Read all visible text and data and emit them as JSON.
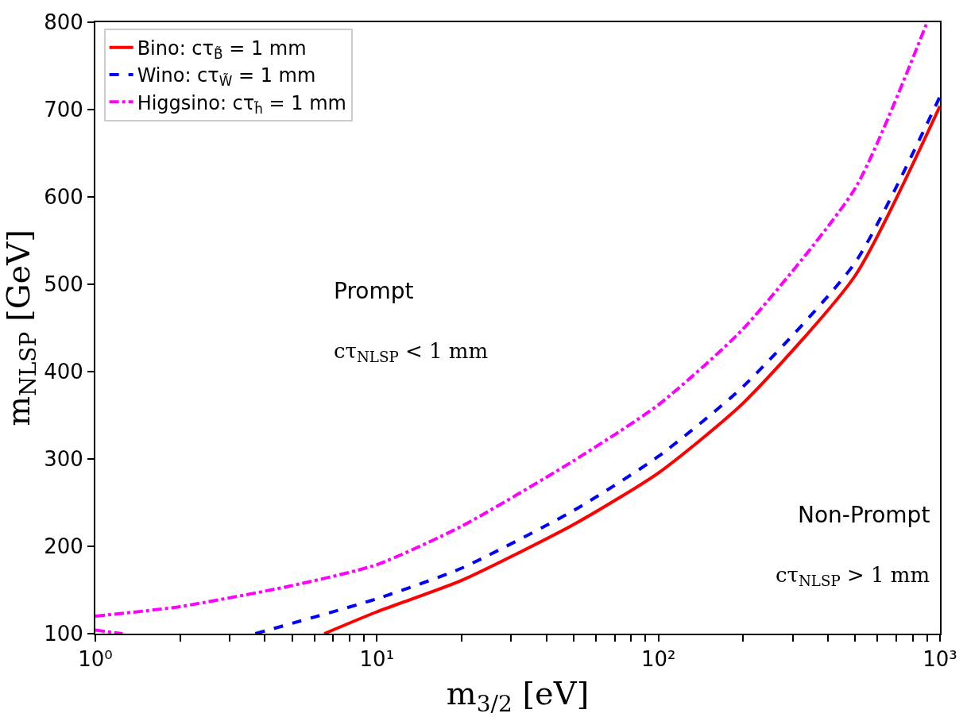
{
  "chart_data": {
    "type": "line",
    "xlabel": "m$_{3/2}$ [eV]",
    "ylabel": "m$_{NLSP}$ [GeV]",
    "log": "x",
    "xlim": [
      1,
      1000
    ],
    "ylim": [
      100,
      800
    ],
    "xticks": [
      {
        "value": 1,
        "label": "10⁰"
      },
      {
        "value": 2,
        "label": null
      },
      {
        "value": 3,
        "label": null
      },
      {
        "value": 4,
        "label": null
      },
      {
        "value": 5,
        "label": null
      },
      {
        "value": 6,
        "label": null
      },
      {
        "value": 7,
        "label": null
      },
      {
        "value": 8,
        "label": null
      },
      {
        "value": 9,
        "label": null
      },
      {
        "value": 10,
        "label": "10¹"
      },
      {
        "value": 20,
        "label": null
      },
      {
        "value": 30,
        "label": null
      },
      {
        "value": 40,
        "label": null
      },
      {
        "value": 50,
        "label": null
      },
      {
        "value": 60,
        "label": null
      },
      {
        "value": 70,
        "label": null
      },
      {
        "value": 80,
        "label": null
      },
      {
        "value": 90,
        "label": null
      },
      {
        "value": 100,
        "label": "10²"
      },
      {
        "value": 200,
        "label": null
      },
      {
        "value": 300,
        "label": null
      },
      {
        "value": 400,
        "label": null
      },
      {
        "value": 500,
        "label": null
      },
      {
        "value": 600,
        "label": null
      },
      {
        "value": 700,
        "label": null
      },
      {
        "value": 800,
        "label": null
      },
      {
        "value": 900,
        "label": null
      },
      {
        "value": 1000,
        "label": "10³"
      }
    ],
    "yticks": [
      100,
      200,
      300,
      400,
      500,
      600,
      700,
      800
    ],
    "legend": "top left",
    "marker": "none",
    "series": [
      {
        "name": "Bino: cτ$_{B̃}$ = 1 mm",
        "color": "#ff0000",
        "line_style": "solid",
        "x": [
          6.5,
          10,
          20,
          50,
          100,
          200,
          500,
          1000
        ],
        "values": [
          100,
          125,
          161,
          225,
          284,
          364,
          510,
          704
        ]
      },
      {
        "name": "Wino: cτ$_{W̃}$ = 1 mm",
        "color": "#0000ff",
        "line_style": "dashed",
        "x": [
          3.7,
          10,
          20,
          50,
          100,
          200,
          500,
          1000
        ],
        "values": [
          100,
          140,
          175,
          241,
          303,
          383,
          525,
          715
        ]
      },
      {
        "name": "Higgsino: cτ$_{h̃}$ = 1 mm",
        "color": "#ff00ff",
        "line_style": "dashdot",
        "x": [
          1,
          2,
          5,
          10,
          20,
          50,
          100,
          200,
          500,
          900,
          null,
          1,
          1.25
        ],
        "values": [
          120,
          131,
          155,
          179,
          223,
          298,
          362,
          449,
          610,
          800,
          null,
          104,
          100
        ]
      }
    ],
    "annotations": [
      "Prompt",
      "cτ$_{NLSP}$ < 1 mm",
      "Non-Prompt",
      "cτ$_{NLSP}$ > 1 mm"
    ]
  }
}
